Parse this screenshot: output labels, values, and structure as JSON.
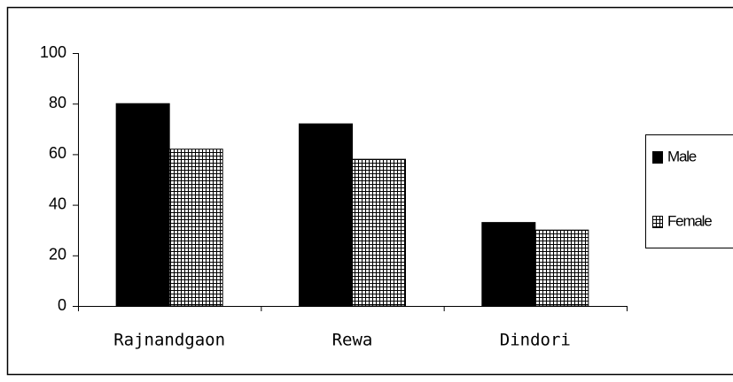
{
  "chart_data": {
    "type": "bar",
    "categories": [
      "Rajnandgaon",
      "Rewa",
      "Dindori"
    ],
    "series": [
      {
        "name": "Male",
        "color": "#000000",
        "values": [
          80,
          72,
          33
        ]
      },
      {
        "name": "Female",
        "color": "#000000",
        "pattern": "grid",
        "values": [
          62,
          58,
          30
        ]
      }
    ],
    "ylim": [
      0,
      100
    ],
    "yticks": [
      0,
      20,
      40,
      60,
      80,
      100
    ],
    "grid": false,
    "legend": "right"
  }
}
